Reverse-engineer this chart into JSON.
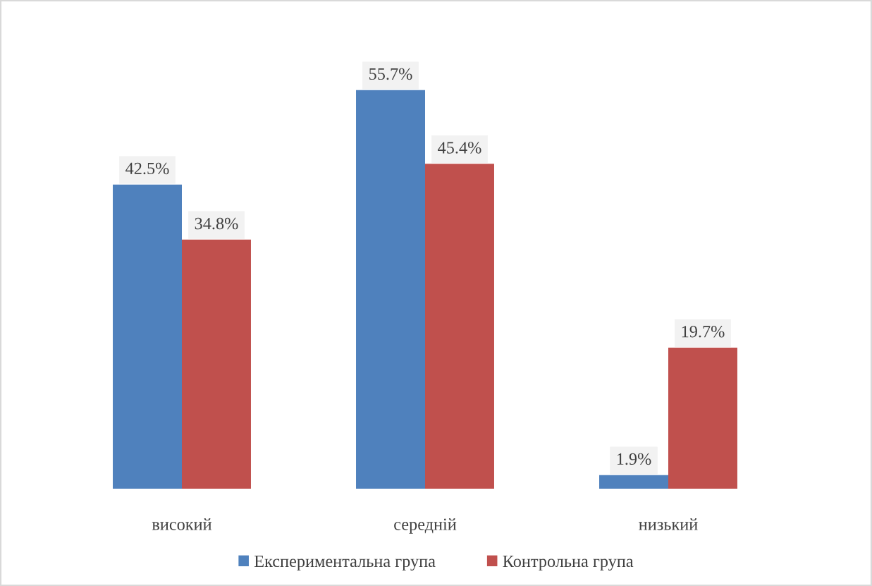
{
  "chart_data": {
    "type": "bar",
    "categories": [
      "високий",
      "середній",
      "низький"
    ],
    "series": [
      {
        "name": "Експериментальна група",
        "color": "#4f81bd",
        "values": [
          42.5,
          55.7,
          1.9
        ],
        "value_labels": [
          "42.5%",
          "55.7%",
          "1.9%"
        ]
      },
      {
        "name": "Контрольна група",
        "color": "#c0504d",
        "values": [
          34.8,
          45.4,
          19.7
        ],
        "value_labels": [
          "34.8%",
          "45.4%",
          "19.7%"
        ]
      }
    ],
    "legend": "bottom",
    "tick_labels": "x"
  }
}
